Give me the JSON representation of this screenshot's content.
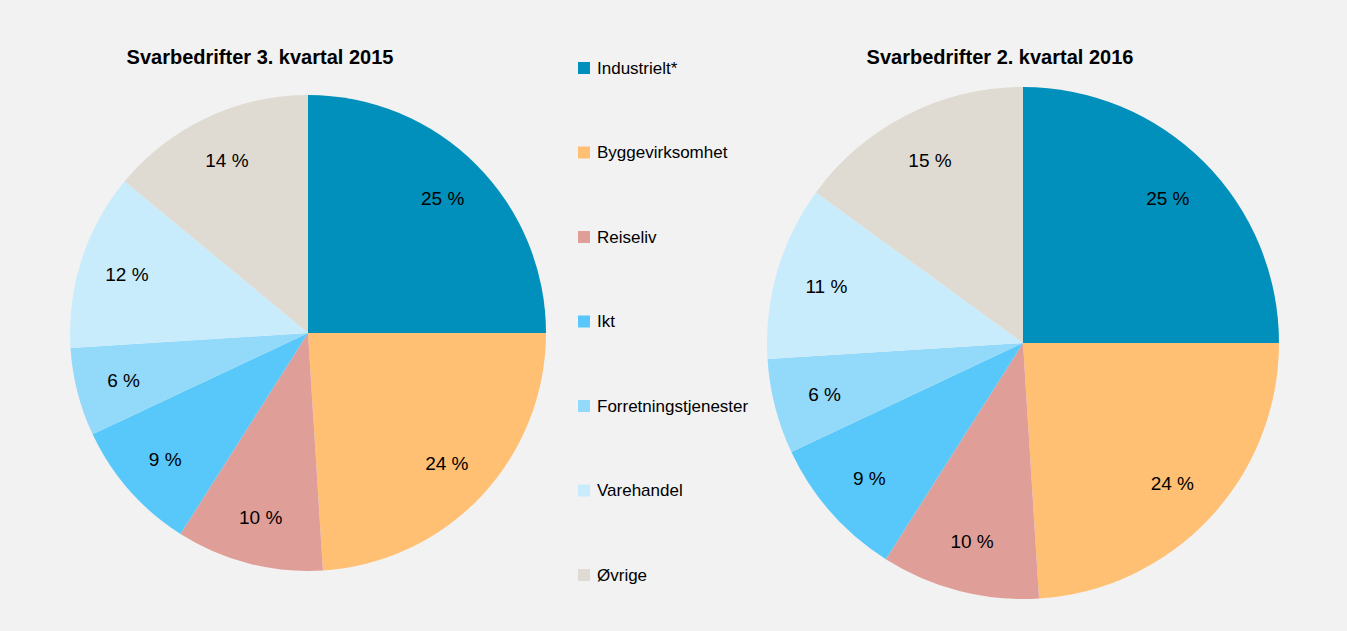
{
  "chart_data": {
    "type": "pie",
    "categories": [
      "Industrielt*",
      "Byggevirksomhet",
      "Reiseliv",
      "Ikt",
      "Forretningstjenester",
      "Varehandel",
      "Øvrige"
    ],
    "colors": [
      "#0090bb",
      "#ffc073",
      "#df9f98",
      "#57c8f9",
      "#93d9fa",
      "#c8ecfc",
      "#e0dbd2"
    ],
    "series": [
      {
        "name": "Svarbedrifter 3. kvartal 2015",
        "values": [
          25,
          24,
          10,
          9,
          6,
          12,
          14
        ],
        "value_labels": [
          "25 %",
          "24 %",
          "10 %",
          "9 %",
          "6 %",
          "12 %",
          "14 %"
        ]
      },
      {
        "name": "Svarbedrifter 2. kvartal 2016",
        "values": [
          25,
          24,
          10,
          9,
          6,
          11,
          15
        ],
        "value_labels": [
          "25 %",
          "24 %",
          "10 %",
          "9 %",
          "6 %",
          "11 %",
          "15 %"
        ]
      }
    ],
    "data_labels": true,
    "legend": "center"
  }
}
